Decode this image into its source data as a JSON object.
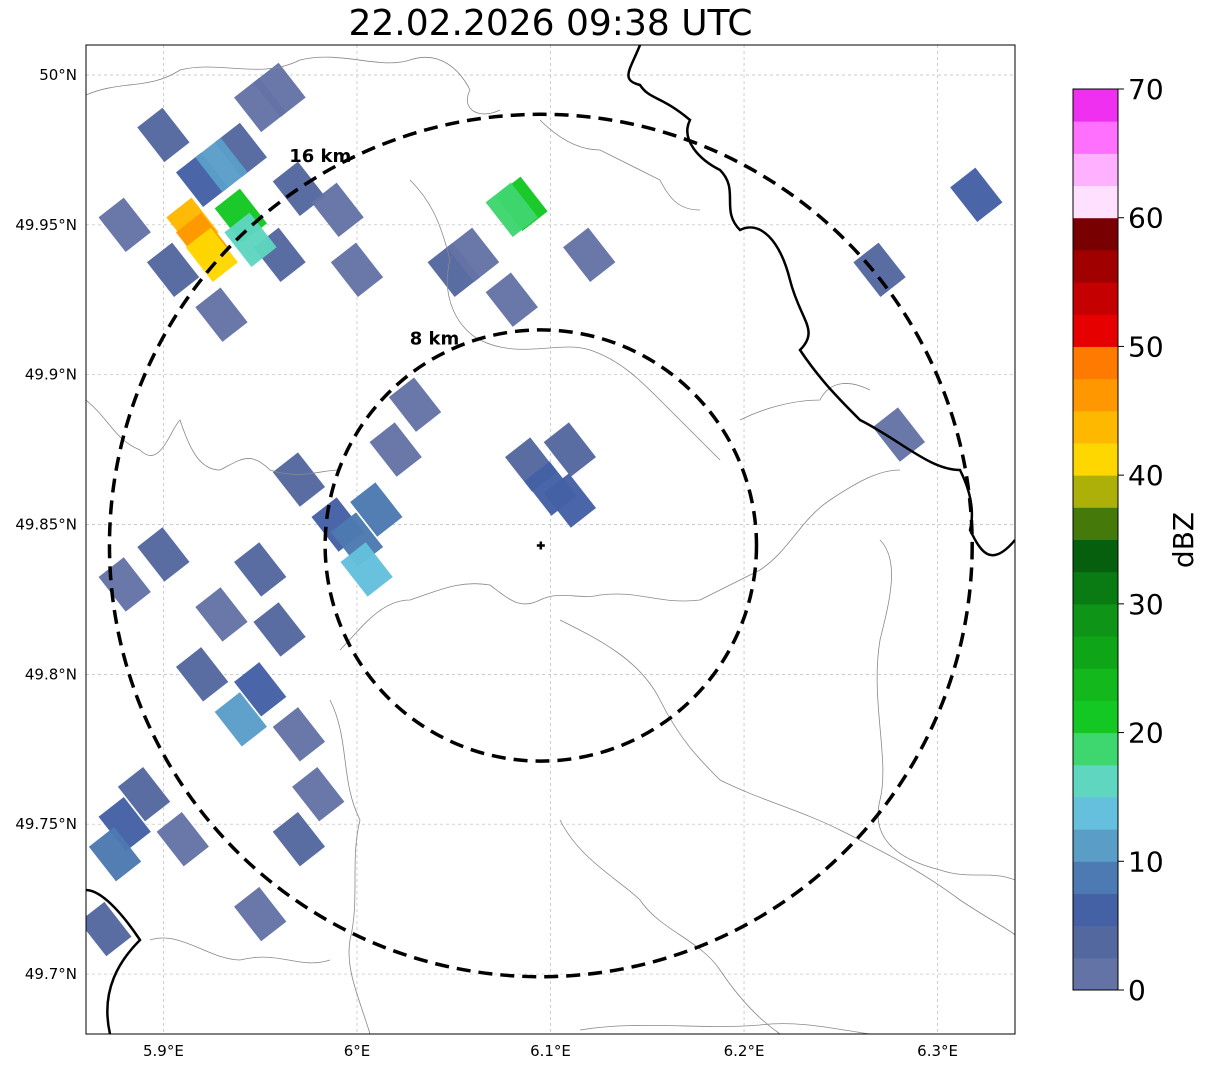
{
  "title": "22.02.2026 09:38 UTC",
  "map": {
    "lon_ticks": [
      {
        "value": 5.9,
        "label": "5.9°E"
      },
      {
        "value": 6.0,
        "label": "6°E"
      },
      {
        "value": 6.1,
        "label": "6.1°E"
      },
      {
        "value": 6.2,
        "label": "6.2°E"
      },
      {
        "value": 6.3,
        "label": "6.3°E"
      }
    ],
    "lat_ticks": [
      {
        "value": 50.0,
        "label": "50°N"
      },
      {
        "value": 49.95,
        "label": "49.95°N"
      },
      {
        "value": 49.9,
        "label": "49.9°N"
      },
      {
        "value": 49.85,
        "label": "49.85°N"
      },
      {
        "value": 49.8,
        "label": "49.8°N"
      },
      {
        "value": 49.75,
        "label": "49.75°N"
      },
      {
        "value": 49.7,
        "label": "49.7°N"
      }
    ],
    "lon_range": [
      5.86,
      6.34
    ],
    "lat_range": [
      49.68,
      50.01
    ],
    "gridlines": true,
    "radar_center": {
      "lon": 6.095,
      "lat": 49.843
    },
    "range_rings": [
      {
        "label": "8 km",
        "radius_km": 8
      },
      {
        "label": "16 km",
        "radius_km": 16
      }
    ],
    "echoes": [
      {
        "lon": 5.94,
        "lat": 49.975,
        "dbz": 3
      },
      {
        "lon": 5.92,
        "lat": 49.965,
        "dbz": 5
      },
      {
        "lon": 5.97,
        "lat": 49.962,
        "dbz": 3
      },
      {
        "lon": 5.99,
        "lat": 49.955,
        "dbz": 2
      },
      {
        "lon": 5.95,
        "lat": 49.99,
        "dbz": 2
      },
      {
        "lon": 5.9,
        "lat": 49.98,
        "dbz": 4
      },
      {
        "lon": 5.88,
        "lat": 49.95,
        "dbz": 2
      },
      {
        "lon": 5.905,
        "lat": 49.935,
        "dbz": 3
      },
      {
        "lon": 5.93,
        "lat": 49.92,
        "dbz": 2
      },
      {
        "lon": 5.96,
        "lat": 49.94,
        "dbz": 4
      },
      {
        "lon": 6.0,
        "lat": 49.935,
        "dbz": 2
      },
      {
        "lon": 5.96,
        "lat": 49.995,
        "dbz": 2
      },
      {
        "lon": 5.915,
        "lat": 49.95,
        "dbz": 43
      },
      {
        "lon": 5.92,
        "lat": 49.945,
        "dbz": 47
      },
      {
        "lon": 5.925,
        "lat": 49.94,
        "dbz": 40
      },
      {
        "lon": 5.94,
        "lat": 49.953,
        "dbz": 20
      },
      {
        "lon": 5.945,
        "lat": 49.945,
        "dbz": 15
      },
      {
        "lon": 5.93,
        "lat": 49.97,
        "dbz": 12
      },
      {
        "lon": 6.085,
        "lat": 49.957,
        "dbz": 22
      },
      {
        "lon": 6.08,
        "lat": 49.955,
        "dbz": 18
      },
      {
        "lon": 6.05,
        "lat": 49.935,
        "dbz": 3
      },
      {
        "lon": 6.06,
        "lat": 49.94,
        "dbz": 2
      },
      {
        "lon": 6.08,
        "lat": 49.925,
        "dbz": 2
      },
      {
        "lon": 6.12,
        "lat": 49.94,
        "dbz": 2
      },
      {
        "lon": 6.09,
        "lat": 49.87,
        "dbz": 4
      },
      {
        "lon": 6.1,
        "lat": 49.862,
        "dbz": 6
      },
      {
        "lon": 6.11,
        "lat": 49.875,
        "dbz": 3
      },
      {
        "lon": 6.11,
        "lat": 49.858,
        "dbz": 5
      },
      {
        "lon": 6.02,
        "lat": 49.875,
        "dbz": 2
      },
      {
        "lon": 6.03,
        "lat": 49.89,
        "dbz": 2
      },
      {
        "lon": 5.9,
        "lat": 49.84,
        "dbz": 3
      },
      {
        "lon": 5.95,
        "lat": 49.835,
        "dbz": 4
      },
      {
        "lon": 5.99,
        "lat": 49.85,
        "dbz": 6
      },
      {
        "lon": 6.0,
        "lat": 49.845,
        "dbz": 8
      },
      {
        "lon": 6.005,
        "lat": 49.835,
        "dbz": 13
      },
      {
        "lon": 6.01,
        "lat": 49.855,
        "dbz": 9
      },
      {
        "lon": 5.97,
        "lat": 49.865,
        "dbz": 3
      },
      {
        "lon": 5.93,
        "lat": 49.82,
        "dbz": 2
      },
      {
        "lon": 5.96,
        "lat": 49.815,
        "dbz": 3
      },
      {
        "lon": 5.88,
        "lat": 49.83,
        "dbz": 2
      },
      {
        "lon": 5.92,
        "lat": 49.8,
        "dbz": 4
      },
      {
        "lon": 5.94,
        "lat": 49.785,
        "dbz": 12
      },
      {
        "lon": 5.95,
        "lat": 49.795,
        "dbz": 5
      },
      {
        "lon": 5.97,
        "lat": 49.78,
        "dbz": 2
      },
      {
        "lon": 5.98,
        "lat": 49.76,
        "dbz": 2
      },
      {
        "lon": 5.97,
        "lat": 49.745,
        "dbz": 3
      },
      {
        "lon": 5.88,
        "lat": 49.75,
        "dbz": 6
      },
      {
        "lon": 5.875,
        "lat": 49.74,
        "dbz": 8
      },
      {
        "lon": 5.89,
        "lat": 49.76,
        "dbz": 4
      },
      {
        "lon": 5.91,
        "lat": 49.745,
        "dbz": 2
      },
      {
        "lon": 5.95,
        "lat": 49.72,
        "dbz": 2
      },
      {
        "lon": 5.87,
        "lat": 49.715,
        "dbz": 4
      },
      {
        "lon": 6.27,
        "lat": 49.935,
        "dbz": 3
      },
      {
        "lon": 6.32,
        "lat": 49.96,
        "dbz": 5
      },
      {
        "lon": 6.28,
        "lat": 49.88,
        "dbz": 2
      }
    ]
  },
  "colorbar": {
    "label": "dBZ",
    "min": 0,
    "max": 70,
    "step": 2.5,
    "ticks": [
      0,
      10,
      20,
      30,
      40,
      50,
      60,
      70
    ],
    "colors": [
      "#6473a6",
      "#5468a0",
      "#4461a6",
      "#4d7ab2",
      "#5a9ec8",
      "#64c0dc",
      "#5fd6c0",
      "#3ed66e",
      "#14c823",
      "#12b81c",
      "#0ea616",
      "#0e9416",
      "#0a7a12",
      "#065f0c",
      "#457a0a",
      "#aeb00a",
      "#ffd700",
      "#ffb800",
      "#ff9800",
      "#ff7a00",
      "#e60000",
      "#c40000",
      "#a00000",
      "#780000",
      "#ffe0ff",
      "#ffb0ff",
      "#ff70ff",
      "#f030f0"
    ]
  }
}
